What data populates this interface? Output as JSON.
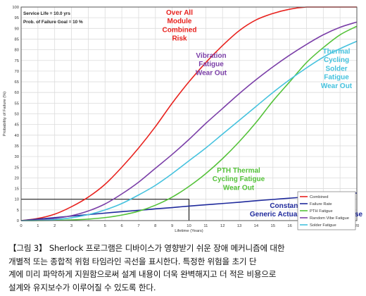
{
  "chart_data": {
    "type": "line",
    "title": "",
    "xlabel": "Lifetime (Years)",
    "ylabel": "Probability of Failure (%)",
    "xlim": [
      0,
      20
    ],
    "ylim": [
      0,
      100
    ],
    "x_ticks": [
      0,
      1,
      2,
      3,
      4,
      5,
      6,
      7,
      8,
      9,
      10,
      11,
      12,
      13,
      14,
      15,
      16,
      17,
      18,
      19,
      20
    ],
    "y_ticks": [
      0,
      5,
      10,
      15,
      20,
      25,
      30,
      35,
      40,
      45,
      50,
      55,
      60,
      65,
      70,
      75,
      80,
      85,
      90,
      95,
      100
    ],
    "grid": true,
    "legend_position": "bottom-right",
    "info_text": [
      "Service Life = 10.0 yrs",
      "Prob. of Failure Goal = 10 %"
    ],
    "target_box": {
      "x": 10,
      "y": 10
    },
    "series": [
      {
        "name": "Combined",
        "color": "#e8231f",
        "x": [
          0,
          1,
          2,
          3,
          4,
          5,
          6,
          7,
          8,
          9,
          10,
          11,
          12,
          13,
          14,
          15,
          16,
          17,
          18,
          19,
          20
        ],
        "y": [
          0,
          1,
          3,
          6.5,
          11,
          17,
          25,
          34,
          44,
          55,
          65,
          74,
          82,
          89,
          94,
          97,
          99,
          100,
          100,
          100,
          100
        ]
      },
      {
        "name": "Failure Rate",
        "color": "#1f2a9c",
        "x": [
          0,
          1,
          2,
          3,
          4,
          5,
          6,
          7,
          8,
          9,
          10,
          11,
          12,
          13,
          14,
          15,
          16,
          17,
          18,
          19,
          20
        ],
        "y": [
          0,
          0.7,
          1.4,
          2.1,
          2.8,
          3.5,
          4.2,
          4.8,
          5.5,
          6.1,
          6.8,
          7.4,
          8.0,
          8.6,
          9.3,
          9.9,
          10.5,
          11.1,
          11.7,
          12.3,
          12.9
        ]
      },
      {
        "name": "PTH Fatigue",
        "color": "#55c23a",
        "x": [
          0,
          1,
          2,
          3,
          4,
          5,
          6,
          7,
          8,
          9,
          10,
          11,
          12,
          13,
          14,
          15,
          16,
          17,
          18,
          19,
          20
        ],
        "y": [
          0,
          0,
          0.1,
          0.3,
          0.7,
          1.4,
          2.6,
          4.4,
          7.2,
          11,
          16,
          22,
          29,
          37,
          46,
          56,
          65,
          74,
          81,
          87,
          91
        ]
      },
      {
        "name": "Random Vibe Fatigue",
        "color": "#7b3fa8",
        "x": [
          0,
          1,
          2,
          3,
          4,
          5,
          6,
          7,
          8,
          9,
          10,
          11,
          12,
          13,
          14,
          15,
          16,
          17,
          18,
          19,
          20
        ],
        "y": [
          0,
          0.3,
          1,
          2.3,
          4.5,
          7.8,
          12.5,
          18,
          24.5,
          31,
          38,
          45.5,
          52.5,
          59.5,
          66,
          72,
          77.5,
          82.5,
          87,
          90.5,
          93
        ]
      },
      {
        "name": "Solder Fatigue",
        "color": "#45c2de",
        "x": [
          0,
          1,
          2,
          3,
          4,
          5,
          6,
          7,
          8,
          9,
          10,
          11,
          12,
          13,
          14,
          15,
          16,
          17,
          18,
          19,
          20
        ],
        "y": [
          0,
          0.1,
          0.5,
          1.3,
          2.8,
          5,
          8,
          12,
          16.5,
          22,
          28,
          34,
          40.5,
          47,
          53.5,
          60,
          66,
          71.5,
          76.5,
          80.5,
          84
        ]
      }
    ],
    "annotations": [
      {
        "series": "Combined",
        "lines": [
          "Over All",
          "Module",
          "Combined",
          "Risk"
        ],
        "color": "#e8231f"
      },
      {
        "series": "Random Vibe Fatigue",
        "lines": [
          "Vibration",
          "Fatigue",
          "Wear Out"
        ],
        "color": "#7b3fa8"
      },
      {
        "series": "Solder Fatigue",
        "lines": [
          "Thermal",
          "Cycling",
          "Solder",
          "Fatigue",
          "Wear Out"
        ],
        "color": "#45c2de"
      },
      {
        "series": "PTH Fatigue",
        "lines": [
          "PTH  Thermal",
          "Cycling Fatigue",
          "Wear Out"
        ],
        "color": "#55c23a"
      },
      {
        "series": "Failure Rate",
        "lines": [
          "Constant Failure Rate",
          "Generic Actuarial MTBF Database"
        ],
        "color": "#1f2a9c"
      }
    ]
  },
  "caption": {
    "lines": [
      "【그림 3】 Sherlock 프로그램은 디바이스가 영향받기 쉬운 장애 메커니즘에 대한",
      "개별적 또는 종합적 위험 타임라인 곡선을 표시한다. 특정한 위험을 초기 단",
      "계에 미리 파악하게 지원함으로써 설계 내용이 더욱 완벽해지고 더 적은 비용으로",
      "설계와 유지보수가 이루어질 수 있도록 한다."
    ]
  }
}
